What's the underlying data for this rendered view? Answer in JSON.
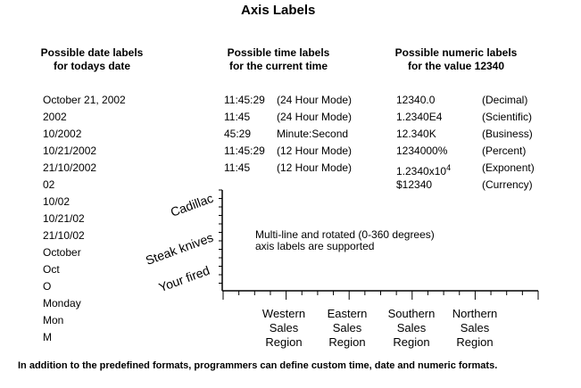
{
  "title": "Axis Labels",
  "date_labels": {
    "header": [
      "Possible date labels",
      "for todays date"
    ],
    "items": [
      "October 21, 2002",
      "2002",
      "10/2002",
      "10/21/2002",
      "21/10/2002",
      "02",
      "10/02",
      "10/21/02",
      "21/10/02",
      "October",
      "Oct",
      "O",
      "Monday",
      "Mon",
      "M"
    ]
  },
  "time_labels": {
    "header": [
      "Possible time labels",
      "for the current time"
    ],
    "items": [
      {
        "value": "11:45:29",
        "mode": "(24 Hour Mode)"
      },
      {
        "value": "11:45",
        "mode": "(24 Hour Mode)"
      },
      {
        "value": "45:29",
        "mode": "Minute:Second"
      },
      {
        "value": "11:45:29",
        "mode": "(12 Hour Mode)"
      },
      {
        "value": "11:45",
        "mode": "(12 Hour Mode)"
      }
    ]
  },
  "numeric_labels": {
    "header": [
      "Possible numeric labels",
      "for the value 12340"
    ],
    "items": [
      {
        "value": "12340.0",
        "type": "(Decimal)"
      },
      {
        "value": "1.2340E4",
        "type": "(Scientific)"
      },
      {
        "value": "12.340K",
        "type": "(Business)"
      },
      {
        "value": "1234000%",
        "type": "(Percent)"
      },
      {
        "value": "1.2340x10",
        "sup": "4",
        "type": "(Exponent)"
      },
      {
        "value": "$12340",
        "type": "(Currency)"
      }
    ]
  },
  "chart_data": {
    "type": "bar",
    "annotation": [
      "Multi-line and rotated (0-360 degrees)",
      "axis labels are supported"
    ],
    "y_categories": [
      "Cadillac",
      "Steak knives",
      "Your fired"
    ],
    "x_categories": [
      [
        "Western",
        "Sales",
        "Region"
      ],
      [
        "Eastern",
        "Sales",
        "Region"
      ],
      [
        "Southern",
        "Sales",
        "Region"
      ],
      [
        "Northern",
        "Sales",
        "Region"
      ]
    ],
    "y_rotation_degrees": 20,
    "grid": false,
    "axis_color": "#000000"
  },
  "footer": "In addition to the predefined formats, programmers can define custom time, date and numeric formats."
}
